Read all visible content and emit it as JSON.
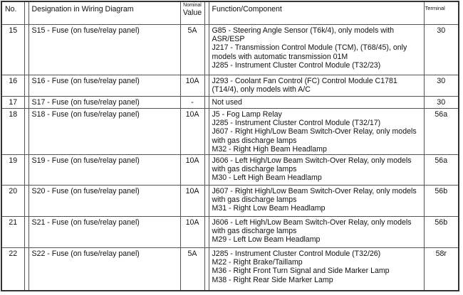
{
  "headers": {
    "no": "No.",
    "designation": "Designation in Wiring Diagram",
    "nominal_small": "Nominal",
    "nominal": "Value",
    "function": "Function/Component",
    "terminal": "Terminal"
  },
  "rows": [
    {
      "no": "15",
      "designation": "S15 - Fuse (on fuse/relay panel)",
      "value": "5A",
      "function": [
        "G85 - Steering Angle Sensor (T6k/4), only models with",
        "ASR/ESP",
        "J217 - Transmission Control Module (TCM), (T68/45), only",
        "models with automatic transmission 01M",
        "J285 - Instrument Cluster Control Module (T32/23)"
      ],
      "terminal": "30"
    },
    {
      "no": "16",
      "designation": "S16 - Fuse (on fuse/relay panel)",
      "value": "10A",
      "function": [
        "J293 - Coolant Fan Control (FC) Control Module C1781",
        "(T14/4), only models with A/C"
      ],
      "terminal": "30"
    },
    {
      "no": "17",
      "designation": "S17 - Fuse (on fuse/relay panel)",
      "value": "-",
      "function": [
        "Not used"
      ],
      "terminal": "30"
    },
    {
      "no": "18",
      "designation": "S18 - Fuse (on fuse/relay panel)",
      "value": "10A",
      "function": [
        "J5 - Fog Lamp Relay",
        "J285 - Instrument Cluster Control Module (T32/17)",
        "J607 - Right High/Low Beam Switch-Over Relay, only models",
        "with gas discharge lamps",
        "M32 - Right High Beam Headlamp"
      ],
      "terminal": "56a"
    },
    {
      "no": "19",
      "designation": "S19 - Fuse (on fuse/relay panel)",
      "value": "10A",
      "function": [
        "J606 - Left High/Low Beam Switch-Over Relay, only models",
        "with gas discharge lamps",
        "M30 - Left High Beam Headlamp"
      ],
      "terminal": "56a"
    },
    {
      "no": "20",
      "designation": "S20 - Fuse (on fuse/relay panel)",
      "value": "10A",
      "function": [
        "J607 - Right High/Low Beam Switch-Over Relay, only models",
        "with gas discharge lamps",
        "M31 - Right Low Beam Headlamp"
      ],
      "terminal": "56b"
    },
    {
      "no": "21",
      "designation": "S21 - Fuse (on fuse/relay panel)",
      "value": "10A",
      "function": [
        "J606 - Left High/Low Beam Switch-Over Relay, only models",
        "with gas discharge lamps",
        "M29 - Left Low Beam Headlamp"
      ],
      "terminal": "56b"
    },
    {
      "no": "22",
      "designation": "S22 - Fuse (on fuse/relay panel)",
      "value": "5A",
      "function": [
        "J285 - Instrument Cluster Control Module (T32/26)",
        "M22 - Right Brake/Taillamp",
        "M36 - Right Front Turn Signal and Side Marker Lamp",
        "M38 - Right Rear Side Marker Lamp"
      ],
      "terminal": "58r"
    }
  ]
}
